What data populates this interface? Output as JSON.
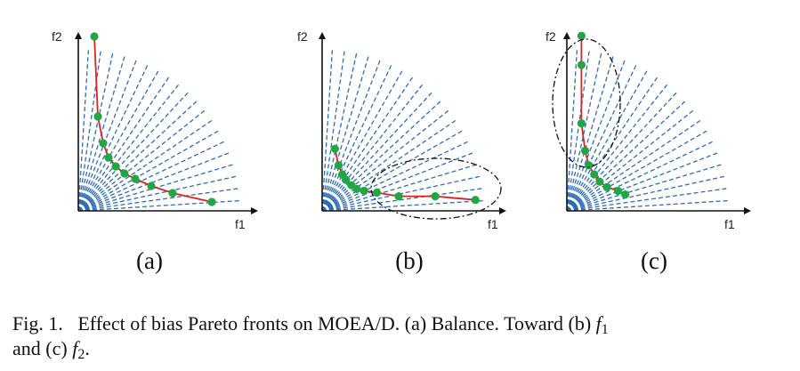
{
  "figure": {
    "colors": {
      "axis": "#111111",
      "rays": "#2e6db4",
      "front": "#e0201b",
      "points": "#22a645",
      "ellipse": "#111111"
    },
    "panels": [
      {
        "id": "a",
        "label": "(a)",
        "xlabel": "f1",
        "ylabel": "f2",
        "ray_count": 20,
        "front": [
          [
            0.09,
            0.98
          ],
          [
            0.11,
            0.53
          ],
          [
            0.14,
            0.38
          ],
          [
            0.17,
            0.3
          ],
          [
            0.21,
            0.25
          ],
          [
            0.26,
            0.21
          ],
          [
            0.32,
            0.18
          ],
          [
            0.41,
            0.14
          ],
          [
            0.53,
            0.1
          ],
          [
            0.75,
            0.05
          ]
        ],
        "ellipse": null
      },
      {
        "id": "b",
        "label": "(b)",
        "xlabel": "f1",
        "ylabel": "f2",
        "ray_count": 20,
        "front": [
          [
            0.07,
            0.34
          ],
          [
            0.09,
            0.25
          ],
          [
            0.11,
            0.2
          ],
          [
            0.13,
            0.17
          ],
          [
            0.16,
            0.14
          ],
          [
            0.19,
            0.12
          ],
          [
            0.23,
            0.11
          ],
          [
            0.3,
            0.1
          ],
          [
            0.42,
            0.08
          ],
          [
            0.62,
            0.08
          ],
          [
            0.84,
            0.06
          ]
        ],
        "ellipse": "f1-end"
      },
      {
        "id": "c",
        "label": "(c)",
        "xlabel": "f1",
        "ylabel": "f2",
        "ray_count": 20,
        "front": [
          [
            0.08,
            0.96
          ],
          [
            0.08,
            0.8
          ],
          [
            0.08,
            0.48
          ],
          [
            0.1,
            0.33
          ],
          [
            0.12,
            0.25
          ],
          [
            0.15,
            0.2
          ],
          [
            0.18,
            0.16
          ],
          [
            0.22,
            0.13
          ],
          [
            0.28,
            0.11
          ],
          [
            0.32,
            0.09
          ]
        ],
        "ellipse": "f2-end"
      }
    ]
  },
  "caption": {
    "fig_label": "Fig. 1.",
    "part1": "Effect of bias Pareto fronts on MOEA/D. (a) Balance. Toward (b)",
    "var1": "f",
    "sub1": "1",
    "part2": "and (c)",
    "var2": "f",
    "sub2": "2",
    "end": "."
  }
}
